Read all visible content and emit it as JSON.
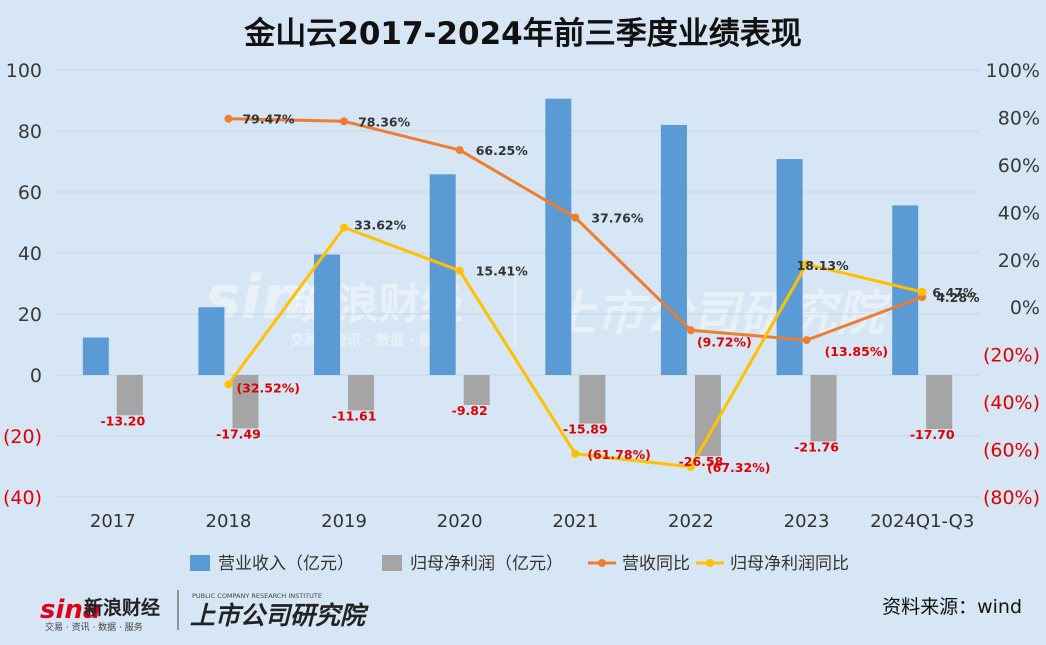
{
  "chart_data": {
    "type": "bar+line",
    "title": "金山云2017-2024年前三季度业绩表现",
    "categories": [
      "2017",
      "2018",
      "2019",
      "2020",
      "2021",
      "2022",
      "2023",
      "2024Q1-Q3"
    ],
    "left_axis": {
      "ylim": [
        -40,
        100
      ],
      "ticks": [
        -40,
        -20,
        0,
        20,
        40,
        60,
        80,
        100
      ],
      "tick_labels": [
        "(40)",
        "(20)",
        "0",
        "20",
        "40",
        "60",
        "80",
        "100"
      ]
    },
    "right_axis": {
      "ylim": [
        -80,
        100
      ],
      "ticks": [
        -80,
        -60,
        -40,
        -20,
        0,
        20,
        40,
        60,
        80,
        100
      ],
      "tick_labels": [
        "(80%)",
        "(60%)",
        "(40%)",
        "(20%)",
        "0%",
        "20%",
        "40%",
        "60%",
        "80%",
        "100%"
      ]
    },
    "series": [
      {
        "name": "营业收入（亿元）",
        "type": "bar",
        "axis": "left",
        "color": "#5b9bd5",
        "values": [
          12.3,
          22.2,
          39.5,
          65.8,
          90.6,
          82.0,
          70.8,
          55.6
        ]
      },
      {
        "name": "归母净利润（亿元）",
        "type": "bar",
        "axis": "left",
        "color": "#a5a5a5",
        "values": [
          -13.2,
          -17.49,
          -11.61,
          -9.82,
          -15.89,
          -26.58,
          -21.76,
          -17.7
        ],
        "labels": [
          "-13.20",
          "-17.49",
          "-11.61",
          "-9.82",
          "-15.89",
          "-26.58",
          "-21.76",
          "-17.70"
        ]
      },
      {
        "name": "营收同比",
        "type": "line",
        "axis": "right",
        "color": "#ed7d31",
        "values": [
          null,
          79.47,
          78.36,
          66.25,
          37.76,
          -9.72,
          -13.85,
          4.28
        ],
        "labels": [
          null,
          "79.47%",
          "78.36%",
          "66.25%",
          "37.76%",
          "(9.72%)",
          "(13.85%)",
          "4.28%"
        ]
      },
      {
        "name": "归母净利润同比",
        "type": "line",
        "axis": "right",
        "color": "#ffc000",
        "values": [
          null,
          -32.52,
          33.62,
          15.41,
          -61.78,
          -67.32,
          18.13,
          6.47
        ],
        "labels": [
          null,
          "(32.52%)",
          "33.62%",
          "15.41%",
          "(61.78%)",
          "(67.32%)",
          "18.13%",
          "6.47%"
        ]
      }
    ],
    "legend_position": "bottom",
    "grid": "horizontal"
  },
  "colors": {
    "background": "#d6e6f4",
    "negative_label": "#e00000",
    "label_dark": "#333333"
  },
  "footer": {
    "source": "资料来源：wind",
    "logo_sina": "sina",
    "logo_sina_name": "新浪财经",
    "logo_sina_sub": "交易 · 资讯 · 数据 · 服务",
    "logo_institute": "上市公司研究院",
    "logo_institute_en": "PUBLIC COMPANY RESEARCH INSTITUTE"
  }
}
